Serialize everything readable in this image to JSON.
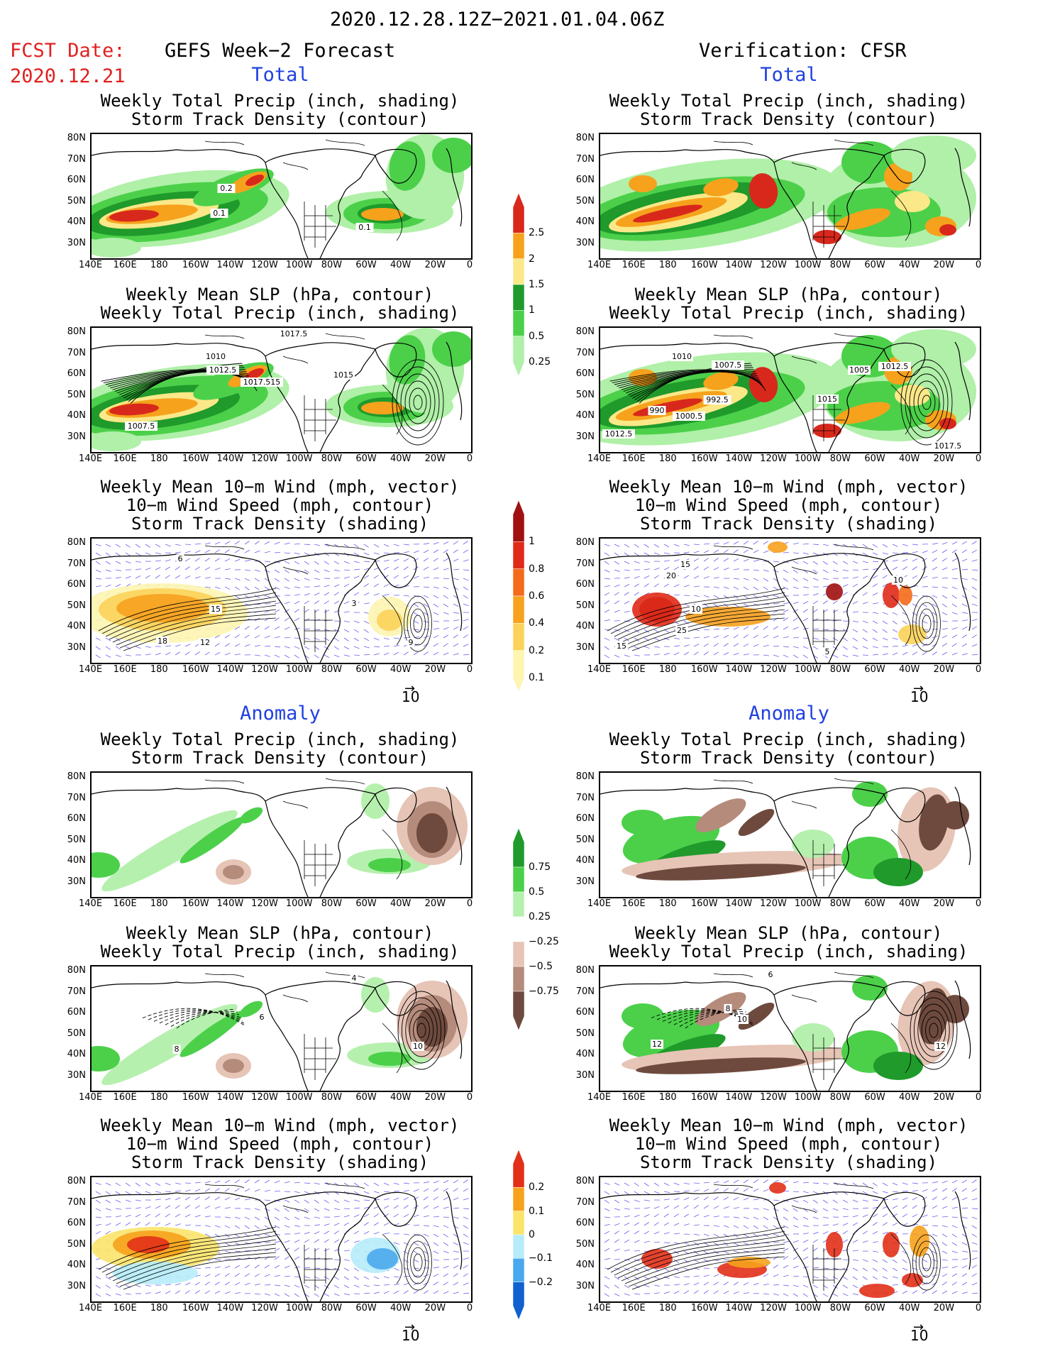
{
  "header": {
    "date_range": "2020.12.28.12Z−2021.01.04.06Z",
    "fcst_label": "FCST Date:",
    "fcst_date": "2020.12.21",
    "left_title": "GEFS Week−2 Forecast",
    "right_title": "Verification: CFSR"
  },
  "sections": {
    "total": "Total",
    "anomaly": "Anomaly"
  },
  "panel_titles": {
    "precip_storm": [
      "Weekly Total Precip (inch, shading)",
      "Storm Track Density (contour)"
    ],
    "slp_precip": [
      "Weekly Mean SLP (hPa, contour)",
      "Weekly Total Precip (inch, shading)"
    ],
    "wind_storm": [
      "Weekly Mean 10−m Wind (mph, vector)",
      "10−m Wind Speed (mph, contour)",
      "Storm Track Density (shading)"
    ]
  },
  "axes": {
    "lat_labels": [
      "80N",
      "70N",
      "60N",
      "50N",
      "40N",
      "30N"
    ],
    "lon_labels": [
      "140E",
      "160E",
      "180",
      "160W",
      "140W",
      "120W",
      "100W",
      "80W",
      "60W",
      "40W",
      "20W",
      "0"
    ]
  },
  "vector_ref": "10",
  "colorbars": {
    "total_precip": {
      "labels": [
        "2.5",
        "2",
        "1.5",
        "1",
        "0.5",
        "0.25"
      ],
      "colors": [
        "#d8281c",
        "#f6a21c",
        "#fbe889",
        "#1f9a2b",
        "#4cd04a",
        "#b0f0a8"
      ]
    },
    "total_storm": {
      "labels": [
        "1",
        "0.8",
        "0.6",
        "0.4",
        "0.2",
        "0.1"
      ],
      "colors": [
        "#a01010",
        "#e02a18",
        "#f56a1a",
        "#f7a11f",
        "#fbd35a",
        "#fdf5b0"
      ]
    },
    "anom_precip": {
      "labels": [
        "0.75",
        "0.5",
        "0.25",
        "−0.25",
        "−0.5",
        "−0.75"
      ],
      "colors": [
        "#1f9a2b",
        "#4cd04a",
        "#b6f0ae",
        "#ffffff",
        "#e6c4b6",
        "#b58b7c",
        "#6e4a3e"
      ]
    },
    "anom_storm": {
      "labels": [
        "0.2",
        "0.1",
        "0",
        "−0.1",
        "−0.2"
      ],
      "colors": [
        "#e23018",
        "#f6a21c",
        "#fbe46a",
        "#b6ecfa",
        "#4aa8ec",
        "#1060d0"
      ]
    }
  },
  "contour_labels": {
    "fcst_total_precip": [
      "0.2",
      "0.1",
      "0.1"
    ],
    "fcst_total_slp": [
      "1017.5",
      "1010",
      "1012.5",
      "1015",
      "1017.515",
      "1007.5"
    ],
    "obs_total_slp": [
      "1010",
      "1007.5",
      "1005",
      "1012.5",
      "990",
      "992.5",
      "1000.5",
      "1015",
      "1012.5",
      "1017.5"
    ],
    "fcst_total_wind": [
      "6",
      "15",
      "18",
      "12",
      "9",
      "3"
    ],
    "obs_total_wind": [
      "20",
      "15",
      "10",
      "25",
      "10",
      "15",
      "5"
    ],
    "fcst_anom_slp": [
      "8",
      "6",
      "10",
      "4"
    ],
    "obs_anom_slp": [
      "6",
      "8",
      "10",
      "12",
      "12"
    ]
  }
}
